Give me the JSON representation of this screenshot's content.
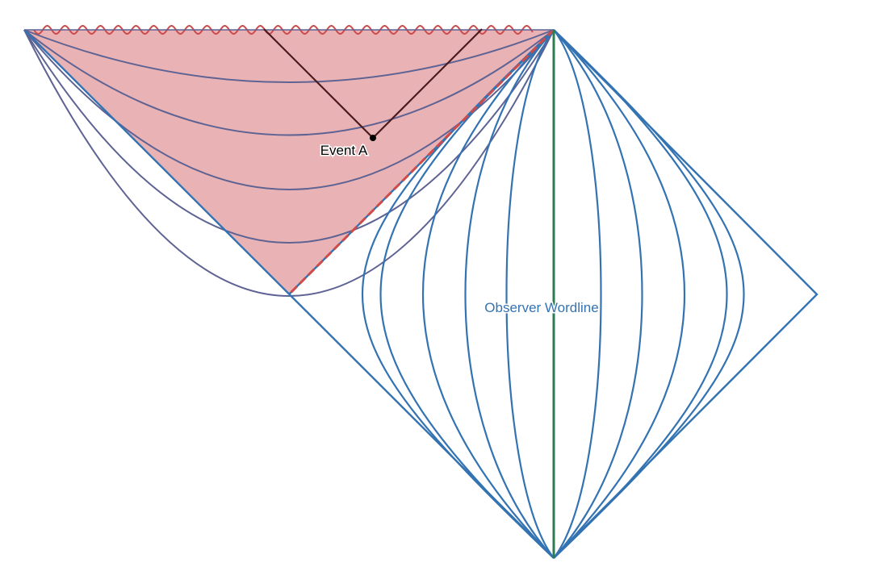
{
  "diagram": {
    "event_label": "Event A",
    "observer_label": "Observer Wordline",
    "colors": {
      "interior_fill": "#e9b3b5",
      "singularity": "#cd4b4b",
      "horizon_dashed": "#cd4b4b",
      "interior_slices": "#5e6394",
      "exterior_curves": "#3473b2",
      "observer_wordline": "#2d7d52",
      "light_rays": "#4a1a1e",
      "event_point": "#000000",
      "observer_label_color": "#3473b2"
    }
  }
}
